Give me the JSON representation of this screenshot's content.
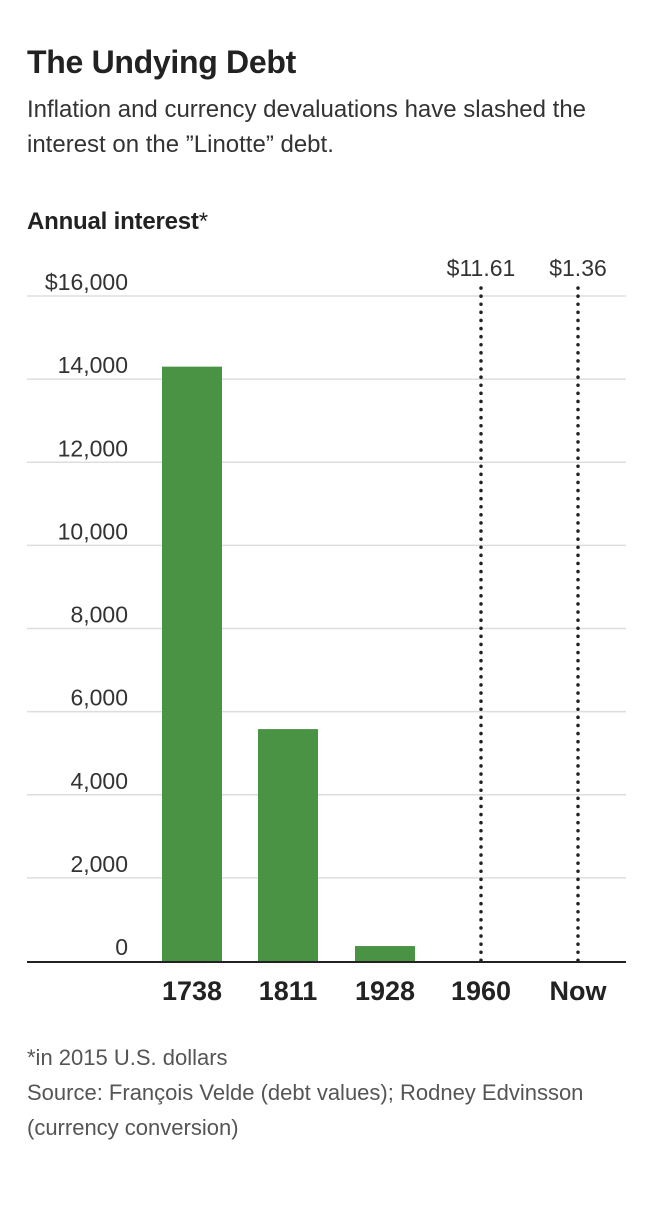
{
  "header": {
    "title": "The Undying Debt",
    "subtitle": "Inflation and currency devaluations have slashed the interest on the ”Linotte” debt."
  },
  "chart_data": {
    "type": "bar",
    "ylabel": "Annual interest",
    "ylabel_marker": "*",
    "categories": [
      "1738",
      "1811",
      "1928",
      "1960",
      "Now"
    ],
    "values": [
      14300,
      5580,
      360,
      11.61,
      1.36
    ],
    "yticks": [
      0,
      2000,
      4000,
      6000,
      8000,
      10000,
      12000,
      14000,
      16000
    ],
    "ytick_labels": [
      "0",
      "2,000",
      "4,000",
      "6,000",
      "8,000",
      "10,000",
      "12,000",
      "14,000",
      "$16,000"
    ],
    "ylim": [
      0,
      16000
    ],
    "annotations": [
      {
        "category": "1960",
        "label": "$11.61",
        "style": "dotted-line"
      },
      {
        "category": "Now",
        "label": "$1.36",
        "style": "dotted-line"
      }
    ],
    "grid": true,
    "bar_color": "#4a9345"
  },
  "footnotes": {
    "note": "*in 2015 U.S. dollars",
    "source": "Source: François Velde (debt values); Rodney Edvinsson (currency conversion)"
  }
}
